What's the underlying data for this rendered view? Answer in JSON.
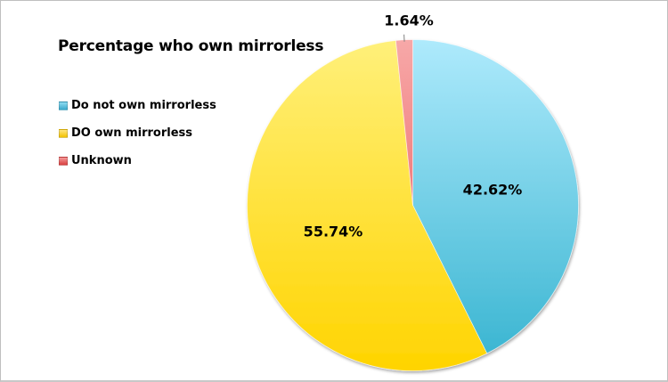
{
  "chart_data": {
    "type": "pie",
    "title": "Percentage who own mirrorless",
    "categories": [
      "Do not own mirrorless",
      "DO own mirrorless",
      "Unknown"
    ],
    "values": [
      42.62,
      55.74,
      1.64
    ],
    "labels": [
      "42.62%",
      "55.74%",
      "1.64%"
    ],
    "colors": [
      "#5cc4e0",
      "#ffdc2e",
      "#f48a8a"
    ],
    "legend_position": "left",
    "start_angle": "12 o'clock, clockwise"
  },
  "title": "Percentage who own mirrorless",
  "legend": [
    {
      "label": "Do not own mirrorless",
      "color": "#4fb8d8"
    },
    {
      "label": "DO own mirrorless",
      "color": "#f5c800"
    },
    {
      "label": "Unknown",
      "color": "#e05050"
    }
  ],
  "slice_labels": {
    "not_own": "42.62%",
    "own": "55.74%",
    "unknown": "1.64%"
  }
}
